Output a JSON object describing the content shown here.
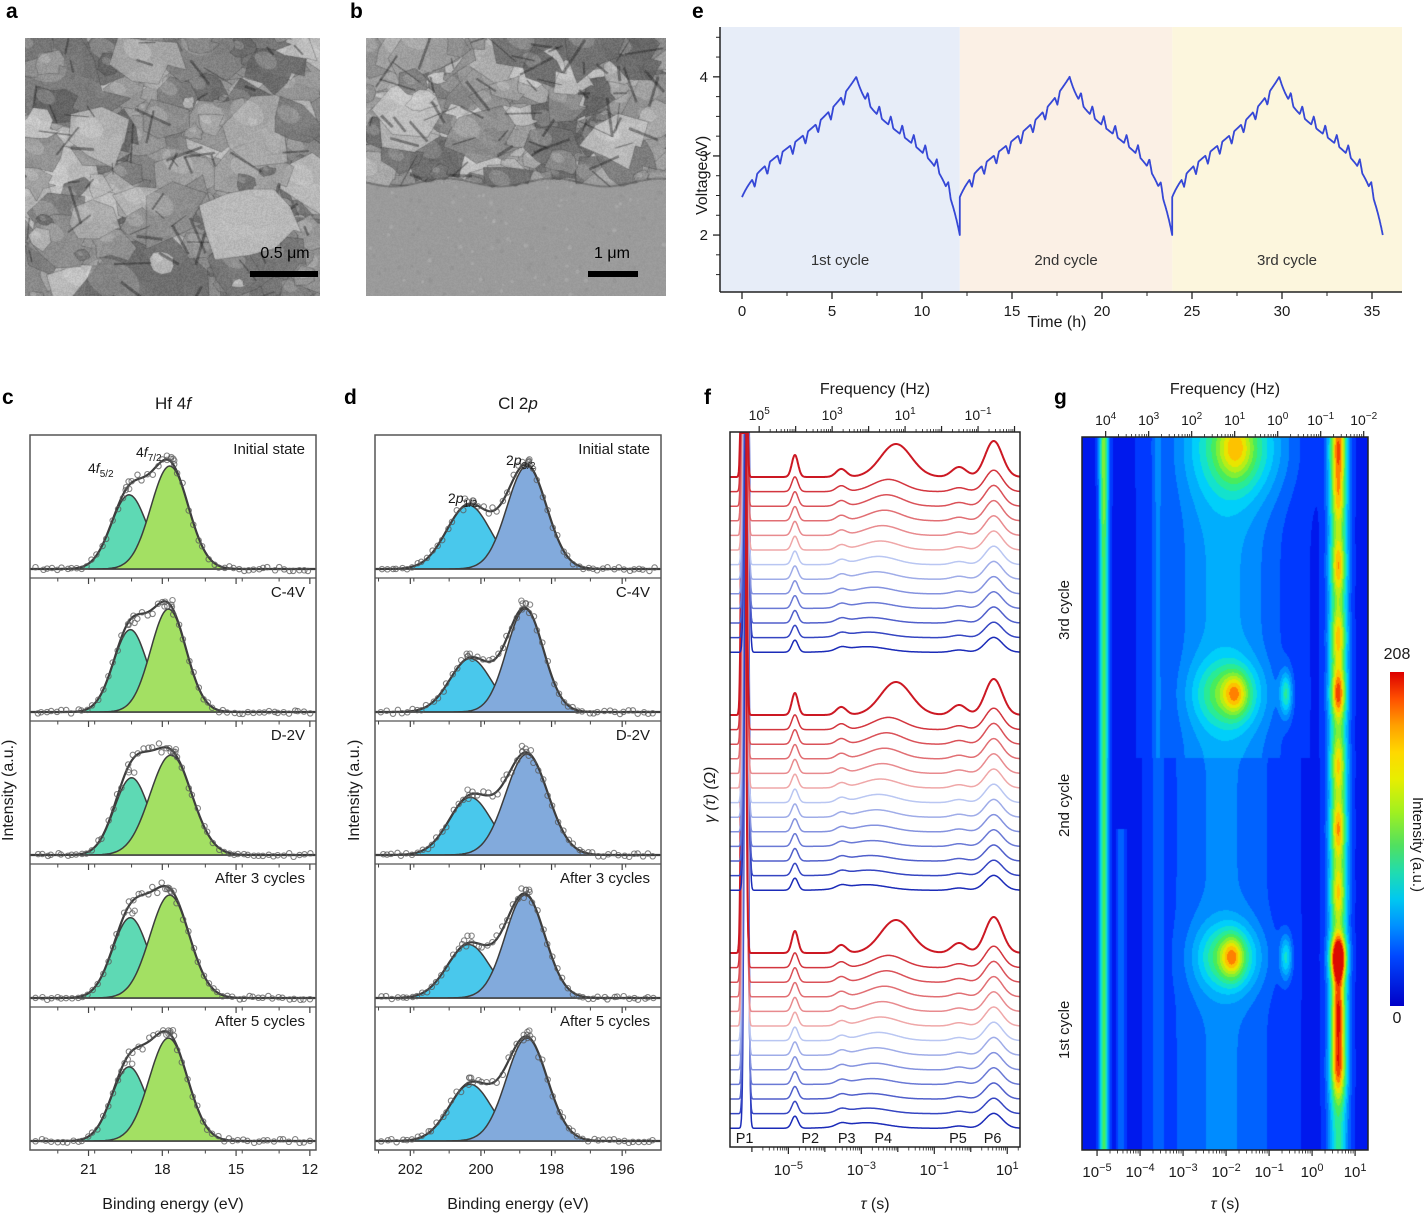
{
  "figure": {
    "panels": {
      "a": {
        "letter": "a",
        "scalebar": "0.5 μm"
      },
      "b": {
        "letter": "b",
        "scalebar": "1 μm"
      },
      "c": {
        "letter": "c",
        "title_prefix": "Hf 4",
        "title_italic": "f",
        "xlabel": "Binding energy (eV)",
        "ylabel": "Intensity (a.u.)",
        "peak1": {
          "base": "4",
          "italic": "f",
          "sub": "5/2"
        },
        "peak2": {
          "base": "4",
          "italic": "f",
          "sub": "7/2"
        }
      },
      "d": {
        "letter": "d",
        "title_prefix": "Cl 2",
        "title_italic": "p",
        "xlabel": "Binding energy (eV)",
        "ylabel": "Intensity (a.u.)",
        "peak1": {
          "base": "2",
          "italic": "p",
          "sub": "1/2"
        },
        "peak2": {
          "base": "2",
          "italic": "p",
          "sub": "3/2"
        }
      },
      "e": {
        "letter": "e",
        "xlabel": "Time (h)",
        "ylabel": "Voltage (V)"
      },
      "f": {
        "letter": "f",
        "top_xlabel": "Frequency (Hz)",
        "xlabel_sym": "τ",
        "xlabel_unit": "(s)",
        "ylabel": "γ (τ) (Ω)"
      },
      "g": {
        "letter": "g",
        "top_xlabel": "Frequency (Hz)",
        "xlabel_sym": "τ",
        "xlabel_unit": "(s)",
        "cycle_labels": [
          "3rd cycle",
          "2nd cycle",
          "1st cycle"
        ],
        "colorbar": {
          "max": "208",
          "min": "0",
          "label": "Intensity (a.u.)"
        }
      }
    }
  },
  "chart_data": [
    {
      "panel": "c",
      "type": "line",
      "title": "Hf 4f",
      "xlabel": "Binding energy (eV)",
      "ylabel": "Intensity (a.u.)",
      "x_ticks": [
        21,
        18,
        15,
        12
      ],
      "x_minor_step": 1.5,
      "x_range": [
        23.38,
        11.75
      ],
      "components": [
        {
          "name": "4f5/2",
          "color": "#5ed9b4"
        },
        {
          "name": "4f7/2",
          "color": "#a3e063"
        }
      ],
      "rows": [
        {
          "label": "Initial state",
          "peaks": [
            {
              "center": 19.35,
              "sigma": 0.72,
              "amp": 0.72
            },
            {
              "center": 17.7,
              "sigma": 0.76,
              "amp": 1.0
            }
          ]
        },
        {
          "label": "C-4V",
          "peaks": [
            {
              "center": 19.3,
              "sigma": 0.68,
              "amp": 0.8
            },
            {
              "center": 17.75,
              "sigma": 0.72,
              "amp": 1.0
            }
          ]
        },
        {
          "label": "D-2V",
          "peaks": [
            {
              "center": 19.25,
              "sigma": 0.7,
              "amp": 0.75
            },
            {
              "center": 17.65,
              "sigma": 0.85,
              "amp": 0.97
            }
          ]
        },
        {
          "label": "After 3 cycles",
          "peaks": [
            {
              "center": 19.3,
              "sigma": 0.72,
              "amp": 0.78
            },
            {
              "center": 17.7,
              "sigma": 0.8,
              "amp": 1.0
            }
          ]
        },
        {
          "label": "After 5 cycles",
          "peaks": [
            {
              "center": 19.35,
              "sigma": 0.7,
              "amp": 0.72
            },
            {
              "center": 17.75,
              "sigma": 0.78,
              "amp": 1.0
            }
          ]
        }
      ]
    },
    {
      "panel": "d",
      "type": "line",
      "title": "Cl 2p",
      "xlabel": "Binding energy (eV)",
      "ylabel": "Intensity (a.u.)",
      "x_ticks": [
        202,
        200,
        198,
        196
      ],
      "x_minor_step": 1,
      "x_range": [
        203.0,
        194.9
      ],
      "components": [
        {
          "name": "2p1/2",
          "color": "#49c8ec"
        },
        {
          "name": "2p3/2",
          "color": "#82aadc"
        }
      ],
      "rows": [
        {
          "label": "Initial state",
          "peaks": [
            {
              "center": 200.35,
              "sigma": 0.62,
              "amp": 0.62
            },
            {
              "center": 198.7,
              "sigma": 0.56,
              "amp": 1.0
            }
          ]
        },
        {
          "label": "C-4V",
          "peaks": [
            {
              "center": 200.3,
              "sigma": 0.58,
              "amp": 0.52
            },
            {
              "center": 198.75,
              "sigma": 0.52,
              "amp": 1.0
            }
          ]
        },
        {
          "label": "D-2V",
          "peaks": [
            {
              "center": 200.3,
              "sigma": 0.6,
              "amp": 0.56
            },
            {
              "center": 198.7,
              "sigma": 0.6,
              "amp": 0.98
            }
          ]
        },
        {
          "label": "After 3 cycles",
          "peaks": [
            {
              "center": 200.35,
              "sigma": 0.6,
              "amp": 0.52
            },
            {
              "center": 198.75,
              "sigma": 0.56,
              "amp": 1.0
            }
          ]
        },
        {
          "label": "After 5 cycles",
          "peaks": [
            {
              "center": 200.3,
              "sigma": 0.6,
              "amp": 0.55
            },
            {
              "center": 198.7,
              "sigma": 0.58,
              "amp": 1.0
            }
          ]
        }
      ]
    },
    {
      "panel": "e",
      "type": "line",
      "xlabel": "Time (h)",
      "ylabel": "Voltage (V)",
      "x_ticks": [
        0,
        5,
        10,
        15,
        20,
        25,
        30,
        35
      ],
      "y_ticks": [
        2,
        3,
        4
      ],
      "x_range": [
        -1.2,
        36.2
      ],
      "y_range": [
        1.28,
        4.63
      ],
      "line_color": "#3547d6",
      "pulse_depth": 0.13,
      "regions": [
        {
          "label": "1st cycle",
          "t0": 0,
          "t1": 12.1,
          "color": "#e7edf8"
        },
        {
          "label": "2nd cycle",
          "t0": 12.1,
          "t1": 23.9,
          "color": "#fbf0e5"
        },
        {
          "label": "3rd cycle",
          "t0": 23.9,
          "t1": 36.2,
          "color": "#fcf6dd"
        }
      ],
      "cycles": [
        {
          "t0": 0,
          "charge_h": 6.35,
          "discharge_h": 5.75,
          "v_start": 2.48,
          "v_max": 4.0,
          "v_end": 2.0,
          "pulses": 8
        },
        {
          "t0": 12.1,
          "charge_h": 6.1,
          "discharge_h": 5.7,
          "v_start": 2.48,
          "v_max": 4.0,
          "v_end": 2.0,
          "pulses": 8
        },
        {
          "t0": 23.9,
          "charge_h": 5.95,
          "discharge_h": 5.75,
          "v_start": 2.48,
          "v_max": 4.0,
          "v_end": 2.0,
          "pulses": 8
        }
      ]
    },
    {
      "panel": "f",
      "type": "line",
      "top_xlabel": "Frequency (Hz)",
      "xlabel": "τ (s)",
      "ylabel": "γ (τ) (Ω)",
      "top_tick_logf": [
        5,
        3,
        1,
        -1
      ],
      "x_tick_logtau": [
        -5,
        -3,
        -1,
        1
      ],
      "x_range_log": [
        -6.6,
        1.35
      ],
      "peak_labels": [
        "P1",
        "P2",
        "P3",
        "P4",
        "P5",
        "P6"
      ],
      "peak_label_logtau": [
        -6.2,
        -4.4,
        -3.4,
        -2.4,
        -0.35,
        0.6
      ],
      "peaks_logtau": {
        "P1": -6.18,
        "P2": -4.82,
        "P3": -3.55,
        "P4": -2.15,
        "P5": -0.32,
        "P6": 0.63
      },
      "groups": 3,
      "curves_per_group": 13,
      "color_scale": [
        "#cc1823",
        "#f6c3c3",
        "#b9c6f2",
        "#1b2bb8"
      ]
    },
    {
      "panel": "g",
      "type": "heatmap",
      "top_xlabel": "Frequency (Hz)",
      "xlabel": "τ (s)",
      "top_tick_logf": [
        4,
        3,
        2,
        1,
        0,
        -1,
        -2
      ],
      "x_tick_logtau": [
        -5,
        -4,
        -3,
        -2,
        -1,
        0,
        1
      ],
      "x_range_log": [
        -5.35,
        1.3
      ],
      "y_labels": [
        "3rd cycle",
        "2nd cycle",
        "1st cycle"
      ],
      "intensity_range": [
        0,
        208
      ],
      "colorbar_label": "Intensity (a.u.)",
      "features": {
        "base": 0.07,
        "bands": [
          {
            "x": -4.85,
            "sx": 0.075,
            "amp": 0.5
          },
          {
            "x": -4.45,
            "sx": 0.06,
            "amp": 0.14,
            "y0": 0.55,
            "y1": 1
          },
          {
            "x": -3.6,
            "sx": 0.09,
            "amp": 0.1
          },
          {
            "x": -2.1,
            "sx": 0.95,
            "amp": 0.16
          },
          {
            "x": -2.0,
            "sx": 0.95,
            "amp": 0.07,
            "y0": 0,
            "y1": 0.45
          },
          {
            "x": 0.62,
            "sx": 0.16,
            "amp": 0.42
          }
        ],
        "blobs": [
          {
            "x": -4.85,
            "y": 0.03,
            "sx": 0.09,
            "sy": 0.06,
            "amp": 0.08
          },
          {
            "x": -1.7,
            "y": 0.015,
            "sx": 0.75,
            "sy": 0.05,
            "amp": 0.3
          },
          {
            "x": -1.78,
            "y": 0.015,
            "sx": 0.28,
            "sy": 0.03,
            "amp": 0.25
          },
          {
            "x": -1.95,
            "y": 0.36,
            "sx": 0.55,
            "sy": 0.033,
            "amp": 0.33
          },
          {
            "x": -1.78,
            "y": 0.36,
            "sx": 0.2,
            "sy": 0.02,
            "amp": 0.28
          },
          {
            "x": -0.6,
            "y": 0.36,
            "sx": 0.1,
            "sy": 0.022,
            "amp": 0.33
          },
          {
            "x": -1.95,
            "y": 0.73,
            "sx": 0.5,
            "sy": 0.033,
            "amp": 0.38
          },
          {
            "x": -1.85,
            "y": 0.73,
            "sx": 0.18,
            "sy": 0.02,
            "amp": 0.3
          },
          {
            "x": -0.6,
            "y": 0.73,
            "sx": 0.1,
            "sy": 0.022,
            "amp": 0.3
          },
          {
            "x": 0.62,
            "y": 0.015,
            "sx": 0.14,
            "sy": 0.04,
            "amp": 0.42
          },
          {
            "x": 0.62,
            "y": 0.09,
            "sx": 0.14,
            "sy": 0.03,
            "amp": 0.25
          },
          {
            "x": 0.62,
            "y": 0.18,
            "sx": 0.14,
            "sy": 0.03,
            "amp": 0.35
          },
          {
            "x": 0.62,
            "y": 0.28,
            "sx": 0.14,
            "sy": 0.03,
            "amp": 0.32
          },
          {
            "x": 0.62,
            "y": 0.36,
            "sx": 0.14,
            "sy": 0.026,
            "amp": 0.45
          },
          {
            "x": 0.62,
            "y": 0.46,
            "sx": 0.14,
            "sy": 0.03,
            "amp": 0.3
          },
          {
            "x": 0.62,
            "y": 0.55,
            "sx": 0.14,
            "sy": 0.03,
            "amp": 0.36
          },
          {
            "x": 0.62,
            "y": 0.64,
            "sx": 0.14,
            "sy": 0.03,
            "amp": 0.3
          },
          {
            "x": 0.62,
            "y": 0.73,
            "sx": 0.14,
            "sy": 0.022,
            "amp": 0.72
          },
          {
            "x": 0.62,
            "y": 0.81,
            "sx": 0.12,
            "sy": 0.045,
            "amp": 0.5
          },
          {
            "x": 0.62,
            "y": 0.89,
            "sx": 0.14,
            "sy": 0.03,
            "amp": 0.35
          }
        ]
      }
    }
  ]
}
